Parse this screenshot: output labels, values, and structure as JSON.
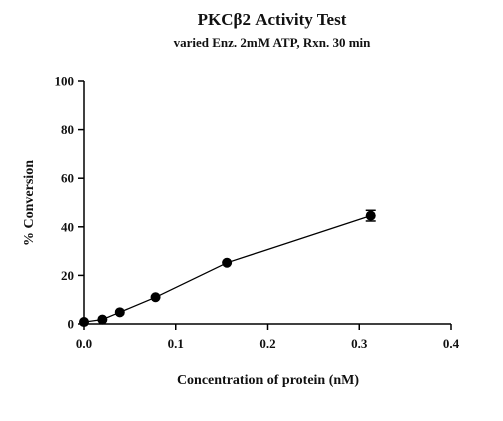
{
  "chart_data": {
    "type": "scatter",
    "title": "PKCβ2 Activity Test",
    "subtitle": "varied Enz. 2mM ATP, Rxn. 30 min",
    "xlabel": "Concentration of protein (nM)",
    "ylabel": "% Conversion",
    "xlim": [
      0,
      0.4
    ],
    "ylim": [
      0,
      100
    ],
    "xticks": [
      "0.0",
      "0.1",
      "0.2",
      "0.3",
      "0.4"
    ],
    "yticks": [
      "0",
      "20",
      "40",
      "60",
      "80",
      "100"
    ],
    "grid": false,
    "series": [
      {
        "color": "#000000",
        "points": [
          {
            "x": 0.0,
            "y": 0.8,
            "err": 0
          },
          {
            "x": 0.02,
            "y": 1.8,
            "err": 0
          },
          {
            "x": 0.039,
            "y": 4.8,
            "err": 0
          },
          {
            "x": 0.078,
            "y": 11.0,
            "err": 0
          },
          {
            "x": 0.156,
            "y": 25.2,
            "err": 0
          },
          {
            "x": 0.3125,
            "y": 44.6,
            "err": 2.2
          }
        ]
      }
    ]
  }
}
